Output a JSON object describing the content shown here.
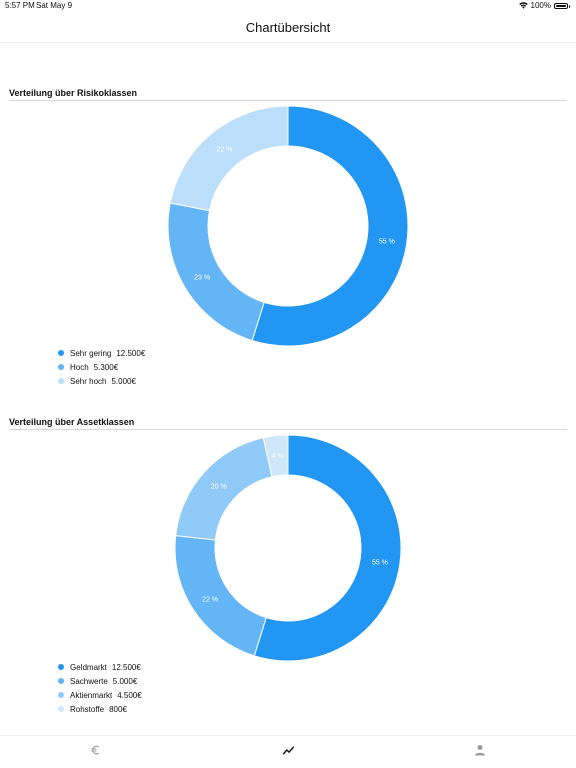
{
  "status_bar": {
    "time": "5:57 PM",
    "date": "Sat May 9",
    "battery": "100%",
    "battery_level": 1.0
  },
  "nav": {
    "title": "Chartübersicht"
  },
  "sections": [
    {
      "heading": "Verteilung über Risikoklassen",
      "slices": [
        {
          "name": "Sehr gering",
          "amount": "12.500€",
          "percent_label": "55 %",
          "color": "#2196f3"
        },
        {
          "name": "Hoch",
          "amount": "5.300€",
          "percent_label": "23 %",
          "color": "#64b5f6"
        },
        {
          "name": "Sehr hoch",
          "amount": "5.000€",
          "percent_label": "22 %",
          "color": "#bbdefb"
        }
      ]
    },
    {
      "heading": "Verteilung über Assetklassen",
      "slices": [
        {
          "name": "Geldmarkt",
          "amount": "12.500€",
          "percent_label": "55 %",
          "color": "#2196f3"
        },
        {
          "name": "Sachwerte",
          "amount": "5.000€",
          "percent_label": "22 %",
          "color": "#64b5f6"
        },
        {
          "name": "Aktienmarkt",
          "amount": "4.500€",
          "percent_label": "20 %",
          "color": "#90caf9"
        },
        {
          "name": "Rohstoffe",
          "amount": "800€",
          "percent_label": "4 %",
          "color": "#cfe6fb"
        }
      ]
    }
  ],
  "tab_bar": {
    "tabs": [
      {
        "name": "euro-icon",
        "active": false
      },
      {
        "name": "chart-trend-icon",
        "active": true
      },
      {
        "name": "person-icon",
        "active": false
      }
    ],
    "active_color": "#111111",
    "inactive_color": "#9a9a9a"
  }
}
